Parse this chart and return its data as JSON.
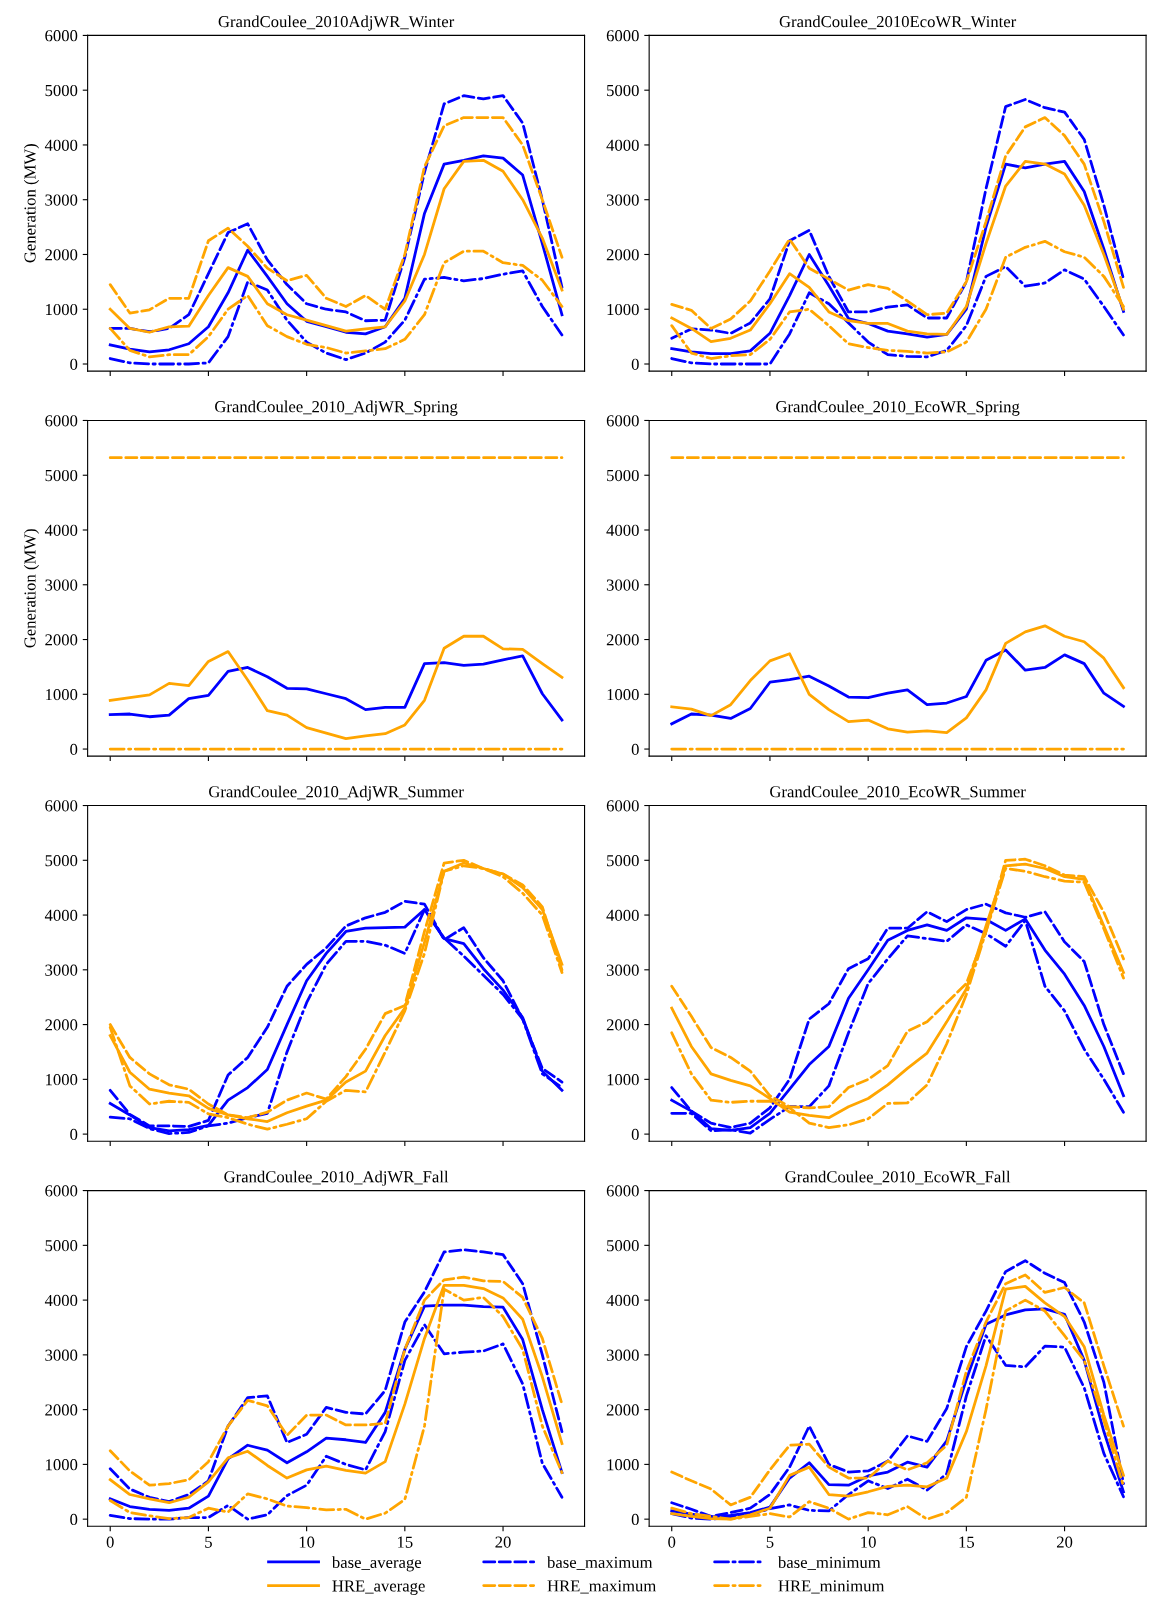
{
  "chart_data": [
    {
      "type": "line",
      "title": "GrandCoulee_2010AdjWR_Winter",
      "ylabel": "Generation (MW)",
      "x": [
        0,
        1,
        2,
        3,
        4,
        5,
        6,
        7,
        8,
        9,
        10,
        11,
        12,
        13,
        14,
        15,
        16,
        17,
        18,
        19,
        20,
        21,
        22,
        23
      ],
      "xlim": [
        -1.15,
        24.15
      ],
      "xticks": [
        0,
        5,
        10,
        15,
        20
      ],
      "ylim": [
        -130,
        6000
      ],
      "yticks": [
        0,
        1000,
        2000,
        3000,
        4000,
        5000,
        6000
      ],
      "tick_labels": "y",
      "legend": "bottom",
      "series": [
        {
          "name": "base_average",
          "color": "#0000ff",
          "line_style": "solid",
          "values": [
            350,
            270,
            220,
            260,
            370,
            680,
            1300,
            2080,
            1600,
            1100,
            780,
            680,
            580,
            550,
            680,
            1200,
            2750,
            3650,
            3720,
            3800,
            3760,
            3450,
            2200,
            900
          ]
        },
        {
          "name": "base_maximum",
          "color": "#0000ff",
          "line_style": "dashed",
          "values": [
            650,
            650,
            590,
            650,
            900,
            1650,
            2400,
            2560,
            1900,
            1450,
            1100,
            1000,
            950,
            790,
            800,
            1950,
            3500,
            4750,
            4900,
            4840,
            4900,
            4400,
            3000,
            1400
          ]
        },
        {
          "name": "base_minimum",
          "color": "#0000ff",
          "line_style": "dashdot",
          "values": [
            100,
            20,
            0,
            0,
            0,
            20,
            500,
            1500,
            1350,
            800,
            400,
            200,
            80,
            200,
            400,
            800,
            1550,
            1580,
            1520,
            1560,
            1640,
            1700,
            1050,
            530
          ]
        },
        {
          "name": "HRE_average",
          "color": "#ffa500",
          "line_style": "solid",
          "values": [
            1000,
            650,
            580,
            680,
            690,
            1250,
            1760,
            1600,
            1100,
            900,
            800,
            700,
            600,
            640,
            680,
            1150,
            2000,
            3200,
            3700,
            3720,
            3520,
            3000,
            2300,
            1350
          ]
        },
        {
          "name": "HRE_maximum",
          "color": "#ffa500",
          "line_style": "dashed",
          "values": [
            1450,
            930,
            990,
            1200,
            1200,
            2250,
            2480,
            2150,
            1750,
            1520,
            1620,
            1200,
            1050,
            1250,
            1000,
            2000,
            3600,
            4350,
            4500,
            4500,
            4500,
            4000,
            3000,
            1950
          ]
        },
        {
          "name": "HRE_minimum",
          "color": "#ffa500",
          "line_style": "dashdot",
          "values": [
            650,
            250,
            130,
            170,
            170,
            500,
            1000,
            1250,
            700,
            500,
            360,
            300,
            200,
            240,
            280,
            450,
            900,
            1850,
            2060,
            2060,
            1850,
            1800,
            1530,
            1050
          ]
        }
      ]
    },
    {
      "type": "line",
      "title": "GrandCoulee_2010EcoWR_Winter",
      "x": [
        0,
        1,
        2,
        3,
        4,
        5,
        6,
        7,
        8,
        9,
        10,
        11,
        12,
        13,
        14,
        15,
        16,
        17,
        18,
        19,
        20,
        21,
        22,
        23
      ],
      "xlim": [
        -1.15,
        24.15
      ],
      "xticks": [
        0,
        5,
        10,
        15,
        20
      ],
      "ylim": [
        -130,
        6000
      ],
      "yticks": [
        0,
        1000,
        2000,
        3000,
        4000,
        5000,
        6000
      ],
      "tick_labels": "y",
      "series": [
        {
          "color": "#0000ff",
          "line_style": "solid",
          "values": [
            280,
            220,
            190,
            190,
            240,
            560,
            1250,
            2000,
            1430,
            830,
            740,
            600,
            550,
            490,
            540,
            1000,
            2500,
            3650,
            3580,
            3650,
            3700,
            3150,
            2100,
            960
          ]
        },
        {
          "color": "#0000ff",
          "line_style": "dashed",
          "values": [
            470,
            640,
            620,
            560,
            750,
            1190,
            2250,
            2440,
            1600,
            950,
            950,
            1040,
            1080,
            840,
            840,
            1500,
            3200,
            4700,
            4830,
            4680,
            4600,
            4100,
            2900,
            1550
          ]
        },
        {
          "color": "#0000ff",
          "line_style": "dashdot",
          "values": [
            100,
            20,
            0,
            0,
            0,
            0,
            550,
            1300,
            1100,
            750,
            400,
            170,
            140,
            130,
            250,
            700,
            1600,
            1780,
            1420,
            1480,
            1720,
            1550,
            1050,
            530
          ]
        },
        {
          "color": "#ffa500",
          "line_style": "solid",
          "values": [
            840,
            650,
            410,
            470,
            620,
            1100,
            1650,
            1400,
            950,
            790,
            740,
            740,
            600,
            550,
            540,
            1050,
            2200,
            3250,
            3700,
            3650,
            3470,
            2900,
            2000,
            1000
          ]
        },
        {
          "color": "#ffa500",
          "line_style": "dashed",
          "values": [
            1090,
            980,
            650,
            820,
            1150,
            1700,
            2280,
            1750,
            1550,
            1350,
            1450,
            1380,
            1150,
            900,
            930,
            1500,
            2600,
            3800,
            4330,
            4500,
            4170,
            3650,
            2600,
            1400
          ]
        },
        {
          "color": "#ffa500",
          "line_style": "dashdot",
          "values": [
            700,
            200,
            100,
            150,
            170,
            450,
            950,
            1000,
            700,
            370,
            300,
            250,
            230,
            200,
            220,
            400,
            1000,
            1950,
            2130,
            2240,
            2050,
            1950,
            1600,
            1050
          ]
        }
      ]
    },
    {
      "type": "line",
      "title": "GrandCoulee_2010_AdjWR_Spring",
      "ylabel": "Generation (MW)",
      "x": [
        0,
        1,
        2,
        3,
        4,
        5,
        6,
        7,
        8,
        9,
        10,
        11,
        12,
        13,
        14,
        15,
        16,
        17,
        18,
        19,
        20,
        21,
        22,
        23
      ],
      "xlim": [
        -1.15,
        24.15
      ],
      "xticks": [
        0,
        5,
        10,
        15,
        20
      ],
      "ylim": [
        -130,
        6000
      ],
      "yticks": [
        0,
        1000,
        2000,
        3000,
        4000,
        5000,
        6000
      ],
      "tick_labels": "y",
      "series": [
        {
          "color": "#0000ff",
          "line_style": "solid",
          "values": [
            630,
            640,
            590,
            620,
            920,
            980,
            1420,
            1490,
            1320,
            1110,
            1100,
            1010,
            920,
            720,
            760,
            760,
            1560,
            1580,
            1530,
            1550,
            1630,
            1700,
            1010,
            530
          ]
        },
        {
          "color": "#ffa500",
          "line_style": "solid",
          "values": [
            890,
            940,
            990,
            1200,
            1160,
            1600,
            1780,
            1260,
            700,
            620,
            390,
            290,
            190,
            240,
            280,
            440,
            890,
            1840,
            2060,
            2060,
            1830,
            1820,
            1560,
            1310
          ]
        },
        {
          "color": "#ffa500",
          "line_style": "dashed",
          "values": [
            5320,
            5320,
            5320,
            5320,
            5320,
            5320,
            5320,
            5320,
            5320,
            5320,
            5320,
            5320,
            5320,
            5320,
            5320,
            5320,
            5320,
            5320,
            5320,
            5320,
            5320,
            5320,
            5320,
            5320
          ]
        },
        {
          "color": "#ffa500",
          "line_style": "dashdot",
          "values": [
            0,
            0,
            0,
            0,
            0,
            0,
            0,
            0,
            0,
            0,
            0,
            0,
            0,
            0,
            0,
            0,
            0,
            0,
            0,
            0,
            0,
            0,
            0,
            0
          ]
        }
      ]
    },
    {
      "type": "line",
      "title": "GrandCoulee_2010_EcoWR_Spring",
      "x": [
        0,
        1,
        2,
        3,
        4,
        5,
        6,
        7,
        8,
        9,
        10,
        11,
        12,
        13,
        14,
        15,
        16,
        17,
        18,
        19,
        20,
        21,
        22,
        23
      ],
      "xlim": [
        -1.15,
        24.15
      ],
      "xticks": [
        0,
        5,
        10,
        15,
        20
      ],
      "ylim": [
        -130,
        6000
      ],
      "yticks": [
        0,
        1000,
        2000,
        3000,
        4000,
        5000,
        6000
      ],
      "tick_labels": "y",
      "series": [
        {
          "color": "#0000ff",
          "line_style": "solid",
          "values": [
            460,
            640,
            620,
            560,
            740,
            1220,
            1270,
            1330,
            1150,
            950,
            940,
            1020,
            1080,
            810,
            840,
            960,
            1620,
            1810,
            1440,
            1490,
            1720,
            1560,
            1020,
            780
          ]
        },
        {
          "color": "#ffa500",
          "line_style": "solid",
          "values": [
            770,
            730,
            610,
            810,
            1250,
            1610,
            1740,
            1000,
            720,
            500,
            530,
            370,
            310,
            330,
            300,
            570,
            1080,
            1930,
            2140,
            2250,
            2060,
            1960,
            1660,
            1120
          ]
        },
        {
          "color": "#ffa500",
          "line_style": "dashed",
          "values": [
            5320,
            5320,
            5320,
            5320,
            5320,
            5320,
            5320,
            5320,
            5320,
            5320,
            5320,
            5320,
            5320,
            5320,
            5320,
            5320,
            5320,
            5320,
            5320,
            5320,
            5320,
            5320,
            5320,
            5320
          ]
        },
        {
          "color": "#ffa500",
          "line_style": "dashdot",
          "values": [
            0,
            0,
            0,
            0,
            0,
            0,
            0,
            0,
            0,
            0,
            0,
            0,
            0,
            0,
            0,
            0,
            0,
            0,
            0,
            0,
            0,
            0,
            0,
            0
          ]
        }
      ]
    },
    {
      "type": "line",
      "title": "GrandCoulee_2010_AdjWR_Summer",
      "x": [
        0,
        1,
        2,
        3,
        4,
        5,
        6,
        7,
        8,
        9,
        10,
        11,
        12,
        13,
        14,
        15,
        16,
        17,
        18,
        19,
        20,
        21,
        22,
        23
      ],
      "xlim": [
        -1.15,
        24.15
      ],
      "xticks": [
        0,
        5,
        10,
        15,
        20
      ],
      "ylim": [
        -130,
        6000
      ],
      "yticks": [
        0,
        1000,
        2000,
        3000,
        4000,
        5000,
        6000
      ],
      "tick_labels": "y",
      "series": [
        {
          "color": "#0000ff",
          "line_style": "solid",
          "values": [
            560,
            350,
            120,
            60,
            80,
            160,
            620,
            850,
            1180,
            2000,
            2800,
            3300,
            3700,
            3760,
            3770,
            3780,
            4100,
            3570,
            3480,
            3020,
            2630,
            2130,
            1150,
            800
          ]
        },
        {
          "color": "#0000ff",
          "line_style": "dashed",
          "values": [
            800,
            360,
            150,
            150,
            140,
            250,
            1080,
            1400,
            1950,
            2700,
            3100,
            3400,
            3800,
            3950,
            4050,
            4250,
            4200,
            3550,
            3770,
            3220,
            2800,
            2100,
            1200,
            950
          ]
        },
        {
          "color": "#0000ff",
          "line_style": "dashdot",
          "values": [
            310,
            280,
            100,
            10,
            30,
            150,
            200,
            300,
            380,
            1500,
            2400,
            3100,
            3520,
            3520,
            3450,
            3300,
            4100,
            3580,
            3250,
            2900,
            2550,
            2100,
            1100,
            850
          ]
        },
        {
          "color": "#ffa500",
          "line_style": "solid",
          "values": [
            1800,
            1130,
            820,
            750,
            700,
            470,
            350,
            280,
            230,
            390,
            510,
            620,
            950,
            1150,
            1800,
            2300,
            3500,
            4800,
            4950,
            4850,
            4750,
            4500,
            4100,
            3100
          ]
        },
        {
          "color": "#ffa500",
          "line_style": "dashed",
          "values": [
            2000,
            1400,
            1100,
            900,
            820,
            550,
            350,
            300,
            400,
            620,
            750,
            640,
            1050,
            1550,
            2200,
            2350,
            3700,
            4950,
            5000,
            4850,
            4750,
            4550,
            4150,
            3000
          ]
        },
        {
          "color": "#ffa500",
          "line_style": "dashdot",
          "values": [
            1950,
            880,
            550,
            600,
            580,
            370,
            300,
            180,
            90,
            180,
            280,
            600,
            800,
            770,
            1500,
            2250,
            3300,
            4800,
            4900,
            4850,
            4700,
            4400,
            4000,
            2950
          ]
        }
      ]
    },
    {
      "type": "line",
      "title": "GrandCoulee_2010_EcoWR_Summer",
      "x": [
        0,
        1,
        2,
        3,
        4,
        5,
        6,
        7,
        8,
        9,
        10,
        11,
        12,
        13,
        14,
        15,
        16,
        17,
        18,
        19,
        20,
        21,
        22,
        23
      ],
      "xlim": [
        -1.15,
        24.15
      ],
      "xticks": [
        0,
        5,
        10,
        15,
        20
      ],
      "ylim": [
        -130,
        6000
      ],
      "yticks": [
        0,
        1000,
        2000,
        3000,
        4000,
        5000,
        6000
      ],
      "tick_labels": "y",
      "series": [
        {
          "color": "#0000ff",
          "line_style": "solid",
          "values": [
            620,
            420,
            100,
            70,
            120,
            380,
            820,
            1270,
            1600,
            2480,
            3000,
            3540,
            3720,
            3820,
            3720,
            3950,
            3920,
            3720,
            3930,
            3360,
            2920,
            2350,
            1600,
            700
          ]
        },
        {
          "color": "#0000ff",
          "line_style": "dashed",
          "values": [
            850,
            420,
            200,
            120,
            200,
            480,
            1000,
            2100,
            2380,
            3020,
            3200,
            3760,
            3760,
            4060,
            3880,
            4100,
            4200,
            4040,
            3960,
            4060,
            3510,
            3150,
            2000,
            1100
          ]
        },
        {
          "color": "#0000ff",
          "line_style": "dashdot",
          "values": [
            380,
            380,
            60,
            80,
            20,
            270,
            500,
            500,
            880,
            1850,
            2750,
            3200,
            3620,
            3570,
            3520,
            3820,
            3660,
            3430,
            3900,
            2700,
            2250,
            1550,
            1000,
            400
          ]
        },
        {
          "color": "#ffa500",
          "line_style": "solid",
          "values": [
            2300,
            1600,
            1100,
            980,
            880,
            650,
            400,
            340,
            300,
            500,
            650,
            900,
            1200,
            1480,
            2050,
            2650,
            3800,
            4900,
            4930,
            4850,
            4700,
            4650,
            3800,
            2950
          ]
        },
        {
          "color": "#ffa500",
          "line_style": "dashed",
          "values": [
            2700,
            2150,
            1580,
            1400,
            1150,
            700,
            500,
            480,
            500,
            850,
            1000,
            1250,
            1880,
            2050,
            2400,
            2750,
            3700,
            5000,
            5020,
            4900,
            4730,
            4700,
            4050,
            3200
          ]
        },
        {
          "color": "#ffa500",
          "line_style": "dashdot",
          "values": [
            1850,
            1100,
            620,
            580,
            600,
            600,
            480,
            200,
            120,
            170,
            280,
            560,
            570,
            900,
            1650,
            2550,
            3700,
            4850,
            4800,
            4700,
            4620,
            4600,
            3750,
            2850
          ]
        }
      ]
    },
    {
      "type": "line",
      "title": "GrandCoulee_2010_AdjWR_Fall",
      "x": [
        0,
        1,
        2,
        3,
        4,
        5,
        6,
        7,
        8,
        9,
        10,
        11,
        12,
        13,
        14,
        15,
        16,
        17,
        18,
        19,
        20,
        21,
        22,
        23
      ],
      "xlim": [
        -1.15,
        24.15
      ],
      "xticks": [
        0,
        5,
        10,
        15,
        20
      ],
      "ylim": [
        -130,
        6000
      ],
      "yticks": [
        0,
        1000,
        2000,
        3000,
        4000,
        5000,
        6000
      ],
      "series": [
        {
          "color": "#0000ff",
          "line_style": "solid",
          "values": [
            370,
            230,
            180,
            160,
            200,
            420,
            1100,
            1350,
            1260,
            1030,
            1230,
            1480,
            1450,
            1400,
            1950,
            3100,
            3890,
            3910,
            3910,
            3880,
            3870,
            3280,
            2000,
            850
          ]
        },
        {
          "color": "#0000ff",
          "line_style": "dashed",
          "values": [
            920,
            550,
            400,
            320,
            450,
            700,
            1700,
            2220,
            2250,
            1400,
            1550,
            2040,
            1950,
            1920,
            2350,
            3600,
            4150,
            4880,
            4920,
            4880,
            4830,
            4300,
            3000,
            1600
          ]
        },
        {
          "color": "#0000ff",
          "line_style": "dashdot",
          "values": [
            70,
            10,
            0,
            0,
            30,
            30,
            250,
            0,
            80,
            430,
            620,
            1150,
            1000,
            900,
            1600,
            2900,
            3550,
            3020,
            3050,
            3070,
            3200,
            2470,
            1020,
            400
          ]
        },
        {
          "color": "#ffa500",
          "line_style": "solid",
          "values": [
            720,
            450,
            370,
            300,
            400,
            680,
            1120,
            1240,
            980,
            750,
            900,
            970,
            890,
            840,
            1050,
            2100,
            3300,
            4270,
            4270,
            4210,
            4040,
            3650,
            2600,
            1380
          ]
        },
        {
          "color": "#ffa500",
          "line_style": "dashed",
          "values": [
            1250,
            880,
            620,
            650,
            720,
            1050,
            1700,
            2170,
            2070,
            1530,
            1900,
            1900,
            1720,
            1720,
            1750,
            3100,
            4000,
            4370,
            4420,
            4350,
            4340,
            4050,
            3300,
            2100
          ]
        },
        {
          "color": "#ffa500",
          "line_style": "dashdot",
          "values": [
            340,
            120,
            60,
            10,
            30,
            200,
            130,
            460,
            370,
            240,
            210,
            170,
            180,
            0,
            110,
            360,
            1700,
            4200,
            4000,
            4050,
            3700,
            3100,
            1700,
            850
          ]
        }
      ]
    },
    {
      "type": "line",
      "title": "GrandCoulee_2010_EcoWR_Fall",
      "x": [
        0,
        1,
        2,
        3,
        4,
        5,
        6,
        7,
        8,
        9,
        10,
        11,
        12,
        13,
        14,
        15,
        16,
        17,
        18,
        19,
        20,
        21,
        22,
        23
      ],
      "xlim": [
        -1.15,
        24.15
      ],
      "xticks": [
        0,
        5,
        10,
        15,
        20
      ],
      "ylim": [
        -130,
        6000
      ],
      "yticks": [
        0,
        1000,
        2000,
        3000,
        4000,
        5000,
        6000
      ],
      "series": [
        {
          "color": "#0000ff",
          "line_style": "solid",
          "values": [
            150,
            90,
            40,
            70,
            120,
            220,
            750,
            1030,
            630,
            620,
            790,
            860,
            1040,
            950,
            1430,
            2550,
            3560,
            3730,
            3820,
            3840,
            3740,
            2900,
            1600,
            500
          ]
        },
        {
          "color": "#0000ff",
          "line_style": "dashed",
          "values": [
            300,
            180,
            50,
            120,
            200,
            450,
            950,
            1700,
            1000,
            860,
            880,
            1060,
            1520,
            1420,
            2020,
            3150,
            3800,
            4520,
            4720,
            4490,
            4320,
            3600,
            2500,
            650
          ]
        },
        {
          "color": "#0000ff",
          "line_style": "dashdot",
          "values": [
            100,
            20,
            0,
            40,
            80,
            190,
            260,
            160,
            150,
            450,
            700,
            560,
            730,
            530,
            830,
            2250,
            3350,
            2810,
            2780,
            3160,
            3140,
            2400,
            1200,
            410
          ]
        },
        {
          "color": "#ffa500",
          "line_style": "solid",
          "values": [
            100,
            50,
            10,
            0,
            80,
            200,
            800,
            950,
            450,
            420,
            500,
            600,
            620,
            590,
            750,
            1600,
            2800,
            4200,
            4250,
            3950,
            3700,
            3150,
            1900,
            800
          ]
        },
        {
          "color": "#ffa500",
          "line_style": "dashed",
          "values": [
            860,
            700,
            550,
            260,
            400,
            900,
            1350,
            1370,
            950,
            750,
            750,
            1060,
            900,
            1030,
            1350,
            2700,
            3600,
            4300,
            4460,
            4140,
            4230,
            3950,
            2800,
            1700
          ]
        },
        {
          "color": "#ffa500",
          "line_style": "dashdot",
          "values": [
            200,
            100,
            50,
            0,
            50,
            100,
            40,
            320,
            200,
            0,
            120,
            80,
            230,
            0,
            120,
            400,
            2000,
            3800,
            4000,
            3800,
            3350,
            2900,
            1800,
            600
          ]
        }
      ]
    }
  ]
}
